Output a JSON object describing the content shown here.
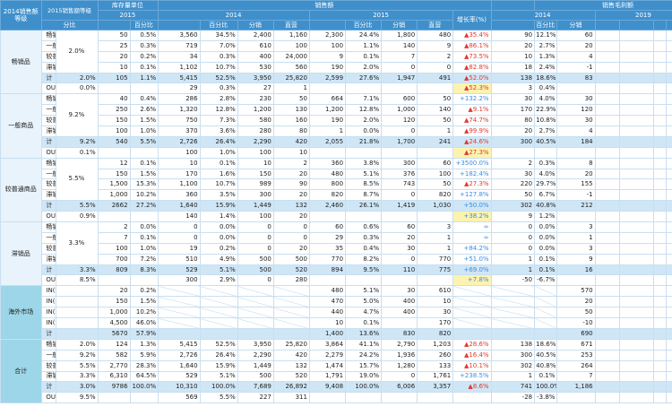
{
  "header": {
    "corner_grade_2014": "2014销售额等级",
    "corner_grade_2015": "2015销售额等级",
    "group_stock": "库存量单位",
    "group_sales": "销售额",
    "group_margin": "销售毛利额",
    "year_2015": "2015",
    "year_2014": "2014",
    "year_2019": "2019",
    "col_share": "分比",
    "col_pct": "百分比",
    "col_fenxiao": "分销",
    "col_zhiying": "直营",
    "col_growth": "增长率(%)"
  },
  "groups": [
    {
      "label": "畅销品",
      "ratio": "2.0%"
    },
    {
      "label": "一般商品",
      "ratio": "9.2%"
    },
    {
      "label": "较普通商品",
      "ratio": "5.5%"
    },
    {
      "label": "滞销品",
      "ratio": "3.3%"
    },
    {
      "label": "海外市场",
      "ratio": ""
    },
    {
      "label": "合计",
      "ratio": ""
    }
  ],
  "rows": [
    {
      "g": 0,
      "type": "item",
      "name": "畅销品",
      "a": "",
      "b": "50",
      "c": "0.5%",
      "d": "3,560",
      "e": "34.5%",
      "f": "2,400",
      "h": "1,160",
      "i": "2,300",
      "j": "24.4%",
      "k": "1,800",
      "l": "480",
      "m": "▲35.4%",
      "md": "up",
      "n": "90",
      "o": "12.1%",
      "p": "60"
    },
    {
      "g": 0,
      "type": "item",
      "name": "一般商品",
      "a": "",
      "b": "25",
      "c": "0.3%",
      "d": "719",
      "e": "7.0%",
      "f": "610",
      "h": "100",
      "i": "100",
      "j": "1.1%",
      "k": "140",
      "l": "9",
      "m": "▲86.1%",
      "md": "up",
      "n": "20",
      "o": "2.7%",
      "p": "20"
    },
    {
      "g": 0,
      "type": "item",
      "name": "较普通商品",
      "a": "",
      "b": "20",
      "c": "0.2%",
      "d": "34",
      "e": "0.3%",
      "f": "400",
      "h": "24,000",
      "i": "9",
      "j": "0.1%",
      "k": "7",
      "l": "2",
      "m": "▲73.5%",
      "md": "up",
      "n": "10",
      "o": "1.3%",
      "p": "4"
    },
    {
      "g": 0,
      "type": "item",
      "name": "滞销品",
      "a": "",
      "b": "10",
      "c": "0.1%",
      "d": "1,102",
      "e": "10.7%",
      "f": "530",
      "h": "560",
      "i": "190",
      "j": "2.0%",
      "k": "0",
      "l": "0",
      "m": "▲82.8%",
      "md": "up",
      "n": "18",
      "o": "2.4%",
      "p": "-1"
    },
    {
      "g": 0,
      "type": "sub",
      "name": "计",
      "a": "2.0%",
      "b": "105",
      "c": "1.1%",
      "d": "5,415",
      "e": "52.5%",
      "f": "3,950",
      "h": "25,820",
      "i": "2,599",
      "j": "27.6%",
      "k": "1,947",
      "l": "491",
      "m": "▲52.0%",
      "md": "up",
      "n": "138",
      "o": "18.6%",
      "p": "83"
    },
    {
      "g": 0,
      "type": "out",
      "name": "OUT",
      "a": "0.0%",
      "b": "",
      "c": "",
      "d": "29",
      "e": "0.3%",
      "f": "27",
      "h": "1",
      "i": "",
      "j": "",
      "k": "",
      "l": "",
      "m": "▲52.3%",
      "md": "up",
      "n": "3",
      "o": "0.4%",
      "p": "",
      "hl": true
    },
    {
      "g": 1,
      "type": "item",
      "name": "畅销品",
      "a": "",
      "b": "40",
      "c": "0.4%",
      "d": "286",
      "e": "2.8%",
      "f": "230",
      "h": "50",
      "i": "664",
      "j": "7.1%",
      "k": "600",
      "l": "50",
      "m": "+132.2%",
      "md": "dn",
      "n": "30",
      "o": "4.0%",
      "p": "30"
    },
    {
      "g": 1,
      "type": "item",
      "name": "一般商品",
      "a": "",
      "b": "250",
      "c": "2.6%",
      "d": "1,320",
      "e": "12.8%",
      "f": "1,200",
      "h": "130",
      "i": "1,200",
      "j": "12.8%",
      "k": "1,000",
      "l": "140",
      "m": "▲9.1%",
      "md": "up",
      "n": "170",
      "o": "22.9%",
      "p": "120"
    },
    {
      "g": 1,
      "type": "item",
      "name": "较普通商品",
      "a": "",
      "b": "150",
      "c": "1.5%",
      "d": "750",
      "e": "7.3%",
      "f": "580",
      "h": "160",
      "i": "190",
      "j": "2.0%",
      "k": "120",
      "l": "50",
      "m": "▲74.7%",
      "md": "up",
      "n": "80",
      "o": "10.8%",
      "p": "30"
    },
    {
      "g": 1,
      "type": "item",
      "name": "滞销品",
      "a": "",
      "b": "100",
      "c": "1.0%",
      "d": "370",
      "e": "3.6%",
      "f": "280",
      "h": "80",
      "i": "1",
      "j": "0.0%",
      "k": "0",
      "l": "1",
      "m": "▲99.9%",
      "md": "up",
      "n": "20",
      "o": "2.7%",
      "p": "4"
    },
    {
      "g": 1,
      "type": "sub",
      "name": "计",
      "a": "9.2%",
      "b": "540",
      "c": "5.5%",
      "d": "2,726",
      "e": "26.4%",
      "f": "2,290",
      "h": "420",
      "i": "2,055",
      "j": "21.8%",
      "k": "1,700",
      "l": "241",
      "m": "▲24.6%",
      "md": "up",
      "n": "300",
      "o": "40.5%",
      "p": "184"
    },
    {
      "g": 1,
      "type": "out",
      "name": "OUT",
      "a": "0.1%",
      "b": "",
      "c": "",
      "d": "100",
      "e": "1.0%",
      "f": "100",
      "h": "10",
      "i": "",
      "j": "",
      "k": "",
      "l": "",
      "m": "▲27.3%",
      "md": "up",
      "n": "",
      "o": "",
      "p": "",
      "hl": true
    },
    {
      "g": 2,
      "type": "item",
      "name": "畅销品",
      "a": "",
      "b": "12",
      "c": "0.1%",
      "d": "10",
      "e": "0.1%",
      "f": "10",
      "h": "2",
      "i": "360",
      "j": "3.8%",
      "k": "300",
      "l": "60",
      "m": "+3500.0%",
      "md": "dn",
      "n": "2",
      "o": "0.3%",
      "p": "8"
    },
    {
      "g": 2,
      "type": "item",
      "name": "一般商品",
      "a": "",
      "b": "150",
      "c": "1.5%",
      "d": "170",
      "e": "1.6%",
      "f": "150",
      "h": "20",
      "i": "480",
      "j": "5.1%",
      "k": "376",
      "l": "100",
      "m": "+182.4%",
      "md": "dn",
      "n": "30",
      "o": "4.0%",
      "p": "20"
    },
    {
      "g": 2,
      "type": "item",
      "name": "较普通商品",
      "a": "",
      "b": "1,500",
      "c": "15.3%",
      "d": "1,100",
      "e": "10.7%",
      "f": "989",
      "h": "90",
      "i": "800",
      "j": "8.5%",
      "k": "743",
      "l": "50",
      "m": "▲27.3%",
      "md": "up",
      "n": "220",
      "o": "29.7%",
      "p": "155"
    },
    {
      "g": 2,
      "type": "item",
      "name": "滞销品",
      "a": "",
      "b": "1,000",
      "c": "10.2%",
      "d": "360",
      "e": "3.5%",
      "f": "300",
      "h": "20",
      "i": "820",
      "j": "8.7%",
      "k": "0",
      "l": "820",
      "m": "+127.8%",
      "md": "dn",
      "n": "50",
      "o": "6.7%",
      "p": "-1"
    },
    {
      "g": 2,
      "type": "sub",
      "name": "计",
      "a": "5.5%",
      "b": "2662",
      "c": "27.2%",
      "d": "1,640",
      "e": "15.9%",
      "f": "1,449",
      "h": "132",
      "i": "2,460",
      "j": "26.1%",
      "k": "1,419",
      "l": "1,030",
      "m": "+50.0%",
      "md": "dn",
      "n": "302",
      "o": "40.8%",
      "p": "212"
    },
    {
      "g": 2,
      "type": "out",
      "name": "OUT",
      "a": "0.9%",
      "b": "",
      "c": "",
      "d": "140",
      "e": "1.4%",
      "f": "100",
      "h": "20",
      "i": "",
      "j": "",
      "k": "",
      "l": "",
      "m": "+38.2%",
      "md": "dn",
      "n": "9",
      "o": "1.2%",
      "p": "",
      "hl": true
    },
    {
      "g": 3,
      "type": "item",
      "name": "畅销品",
      "a": "",
      "b": "2",
      "c": "0.0%",
      "d": "0",
      "e": "0.0%",
      "f": "0",
      "h": "0",
      "i": "60",
      "j": "0.6%",
      "k": "60",
      "l": "3",
      "m": "∞",
      "md": "dn",
      "n": "0",
      "o": "0.0%",
      "p": "3"
    },
    {
      "g": 3,
      "type": "item",
      "name": "一般商品",
      "a": "",
      "b": "7",
      "c": "0.1%",
      "d": "0",
      "e": "0.0%",
      "f": "0",
      "h": "0",
      "i": "29",
      "j": "0.3%",
      "k": "20",
      "l": "1",
      "m": "∞",
      "md": "dn",
      "n": "0",
      "o": "0.0%",
      "p": "1"
    },
    {
      "g": 3,
      "type": "item",
      "name": "较普通商品",
      "a": "",
      "b": "100",
      "c": "1.0%",
      "d": "19",
      "e": "0.2%",
      "f": "0",
      "h": "20",
      "i": "35",
      "j": "0.4%",
      "k": "30",
      "l": "1",
      "m": "+84.2%",
      "md": "dn",
      "n": "0",
      "o": "0.0%",
      "p": "3"
    },
    {
      "g": 3,
      "type": "item",
      "name": "滞销品",
      "a": "",
      "b": "700",
      "c": "7.2%",
      "d": "510",
      "e": "4.9%",
      "f": "500",
      "h": "500",
      "i": "770",
      "j": "8.2%",
      "k": "0",
      "l": "770",
      "m": "+51.0%",
      "md": "dn",
      "n": "1",
      "o": "0.1%",
      "p": "9"
    },
    {
      "g": 3,
      "type": "sub",
      "name": "计",
      "a": "3.3%",
      "b": "809",
      "c": "8.3%",
      "d": "529",
      "e": "5.1%",
      "f": "500",
      "h": "520",
      "i": "894",
      "j": "9.5%",
      "k": "110",
      "l": "775",
      "m": "+69.0%",
      "md": "dn",
      "n": "1",
      "o": "0.1%",
      "p": "16"
    },
    {
      "g": 3,
      "type": "out",
      "name": "OUT",
      "a": "8.5%",
      "b": "",
      "c": "",
      "d": "300",
      "e": "2.9%",
      "f": "0",
      "h": "280",
      "i": "",
      "j": "",
      "k": "",
      "l": "",
      "m": "+7.8%",
      "md": "dn",
      "n": "-50",
      "o": "-6.7%",
      "p": "",
      "hl": true
    },
    {
      "g": 4,
      "type": "item",
      "name": "IN(畅销品)",
      "a": "",
      "b": "20",
      "c": "0.2%",
      "d": "",
      "e": "",
      "f": "",
      "h": "",
      "i": "480",
      "j": "5.1%",
      "k": "30",
      "l": "610",
      "m": "",
      "md": "",
      "n": "",
      "o": "",
      "p": "570"
    },
    {
      "g": 4,
      "type": "item",
      "name": "IN(一般商品)",
      "a": "",
      "b": "150",
      "c": "1.5%",
      "d": "",
      "e": "",
      "f": "",
      "h": "",
      "i": "470",
      "j": "5.0%",
      "k": "400",
      "l": "10",
      "m": "",
      "md": "",
      "n": "",
      "o": "",
      "p": "20"
    },
    {
      "g": 4,
      "type": "item",
      "name": "IN(较普通商品)",
      "a": "",
      "b": "1,000",
      "c": "10.2%",
      "d": "",
      "e": "",
      "f": "",
      "h": "",
      "i": "440",
      "j": "4.7%",
      "k": "400",
      "l": "30",
      "m": "",
      "md": "",
      "n": "",
      "o": "",
      "p": "50"
    },
    {
      "g": 4,
      "type": "item",
      "name": "IN(滞销品)",
      "a": "",
      "b": "4,500",
      "c": "46.0%",
      "d": "",
      "e": "",
      "f": "",
      "h": "",
      "i": "10",
      "j": "0.1%",
      "k": "",
      "l": "170",
      "m": "",
      "md": "",
      "n": "",
      "o": "",
      "p": "-10"
    },
    {
      "g": 4,
      "type": "sub",
      "name": "计",
      "a": "",
      "b": "5670",
      "c": "57.9%",
      "d": "",
      "e": "",
      "f": "",
      "h": "",
      "i": "1,400",
      "j": "13.6%",
      "k": "830",
      "l": "820",
      "m": "",
      "md": "",
      "n": "",
      "o": "",
      "p": "690"
    },
    {
      "g": 5,
      "type": "item",
      "name": "畅销品",
      "a": "2.0%",
      "b": "124",
      "c": "1.3%",
      "d": "5,415",
      "e": "52.5%",
      "f": "3,950",
      "h": "25,820",
      "i": "3,864",
      "j": "41.1%",
      "k": "2,790",
      "l": "1,203",
      "m": "▲28.6%",
      "md": "up",
      "n": "138",
      "o": "18.6%",
      "p": "671"
    },
    {
      "g": 5,
      "type": "item",
      "name": "一般商品",
      "a": "9.2%",
      "b": "582",
      "c": "5.9%",
      "d": "2,726",
      "e": "26.4%",
      "f": "2,290",
      "h": "420",
      "i": "2,279",
      "j": "24.2%",
      "k": "1,936",
      "l": "260",
      "m": "▲16.4%",
      "md": "up",
      "n": "300",
      "o": "40.5%",
      "p": "253"
    },
    {
      "g": 5,
      "type": "item",
      "name": "较普通商品",
      "a": "5.5%",
      "b": "2,770",
      "c": "28.3%",
      "d": "1,640",
      "e": "15.9%",
      "f": "1,449",
      "h": "132",
      "i": "1,474",
      "j": "15.7%",
      "k": "1,280",
      "l": "133",
      "m": "▲10.1%",
      "md": "up",
      "n": "302",
      "o": "40.8%",
      "p": "264"
    },
    {
      "g": 5,
      "type": "item",
      "name": "滞销品",
      "a": "3.3%",
      "b": "6,310",
      "c": "64.5%",
      "d": "529",
      "e": "5.1%",
      "f": "500",
      "h": "520",
      "i": "1,791",
      "j": "19.0%",
      "k": "0",
      "l": "1,761",
      "m": "+238.5%",
      "md": "dn",
      "n": "1",
      "o": "0.1%",
      "p": "7"
    },
    {
      "g": 5,
      "type": "sub",
      "name": "计",
      "a": "3.0%",
      "b": "9786",
      "c": "100.0%",
      "d": "10,310",
      "e": "100.0%",
      "f": "7,689",
      "h": "26,892",
      "i": "9,408",
      "j": "100.0%",
      "k": "6,006",
      "l": "3,357",
      "m": "▲8.6%",
      "md": "up",
      "n": "741",
      "o": "100.0%",
      "p": "1,186"
    },
    {
      "g": 5,
      "type": "out",
      "name": "OUT",
      "a": "9.5%",
      "b": "",
      "c": "",
      "d": "569",
      "e": "5.5%",
      "f": "227",
      "h": "311",
      "i": "",
      "j": "",
      "k": "",
      "l": "",
      "m": "",
      "md": "",
      "n": "-28",
      "o": "-3.8%",
      "p": ""
    }
  ]
}
